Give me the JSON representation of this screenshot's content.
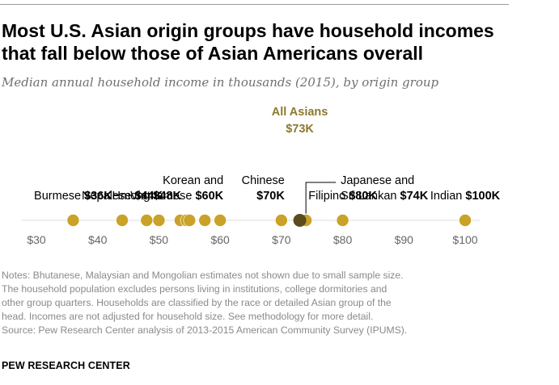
{
  "title_lines": [
    "Most U.S. Asian origin groups have household incomes",
    "that fall below those of Asian Americans overall"
  ],
  "subtitle": "Median annual household income in thousands (2015), by origin group",
  "notes_lines": [
    "Notes: Bhutanese, Malaysian and Mongolian estimates not shown due to small sample size.",
    "The household population excludes persons living in institutions, college dormitories and",
    "other group quarters. Households are classified by the race or detailed Asian group of the",
    "head. Incomes are not adjusted for household size. See methodology for more detail.",
    "Source: Pew Research Center analysis of 2013-2015 American Community Survey (IPUMS)."
  ],
  "source_org": "PEW RESEARCH CENTER",
  "chart_data": {
    "type": "scatter",
    "title": "Most U.S. Asian origin groups have household incomes that fall below those of Asian Americans overall",
    "subtitle": "Median annual household income in thousands (2015), by origin group",
    "xlim": [
      30,
      100
    ],
    "ticks": [
      30,
      40,
      50,
      60,
      70,
      80,
      90,
      100
    ],
    "tick_labels": [
      "$30",
      "$40",
      "$50",
      "$60",
      "$70",
      "$80",
      "$90",
      "$100"
    ],
    "grid": false,
    "colors": {
      "group_dot": "#c9a227",
      "overall_dot": "#5c4b1e",
      "overall_label": "#8c7a2f",
      "axis_line": "#dedede",
      "tick_text": "#666666"
    },
    "points": [
      {
        "value": 36,
        "labeled": true
      },
      {
        "value": 44,
        "labeled": true
      },
      {
        "value": 48,
        "labeled": true
      },
      {
        "value": 50,
        "labeled": false
      },
      {
        "value": 53.5,
        "labeled": false
      },
      {
        "value": 54.5,
        "labeled": false
      },
      {
        "value": 55,
        "labeled": false
      },
      {
        "value": 57.5,
        "labeled": false
      },
      {
        "value": 60,
        "labeled": true
      },
      {
        "value": 70,
        "labeled": true
      },
      {
        "value": 74,
        "labeled": true
      },
      {
        "value": 80,
        "labeled": true
      },
      {
        "value": 100,
        "labeled": true
      }
    ],
    "overall": {
      "value": 73,
      "label_lines": [
        "All Asians",
        "$73K"
      ]
    },
    "labels": [
      {
        "value": 36,
        "lines": [
          [
            {
              "t": "Burmese "
            },
            {
              "t": "$36K",
              "b": true
            }
          ]
        ],
        "anchor": "middle",
        "leader": false
      },
      {
        "value": 44,
        "lines": [
          [
            {
              "t": "Nepalese "
            },
            {
              "t": "$44K",
              "b": true
            }
          ]
        ],
        "anchor": "middle",
        "leader": false
      },
      {
        "value": 48,
        "lines": [
          [
            {
              "t": "Hmong "
            },
            {
              "t": "$48K",
              "b": true
            }
          ]
        ],
        "anchor": "middle",
        "leader": false
      },
      {
        "value": 60,
        "lines": [
          [
            {
              "t": "Korean and"
            }
          ],
          [
            {
              "t": "Vietnamese "
            },
            {
              "t": "$60K",
              "b": true
            }
          ]
        ],
        "anchor": "end",
        "leader": false
      },
      {
        "value": 70,
        "lines": [
          [
            {
              "t": "Chinese"
            }
          ],
          [
            {
              "t": "$70K",
              "b": true
            }
          ]
        ],
        "anchor": "end",
        "leader": false
      },
      {
        "value": 74,
        "lines": [
          [
            {
              "t": "Japanese and"
            }
          ],
          [
            {
              "t": "Sri Lankan "
            },
            {
              "t": "$74K",
              "b": true
            }
          ]
        ],
        "anchor": "start",
        "leader": true
      },
      {
        "value": 80,
        "lines": [
          [
            {
              "t": "Filipino "
            },
            {
              "t": "$80K",
              "b": true
            }
          ]
        ],
        "anchor": "middle",
        "leader": false
      },
      {
        "value": 100,
        "lines": [
          [
            {
              "t": "Indian "
            },
            {
              "t": "$100K",
              "b": true
            }
          ]
        ],
        "anchor": "middle",
        "leader": false
      }
    ]
  }
}
